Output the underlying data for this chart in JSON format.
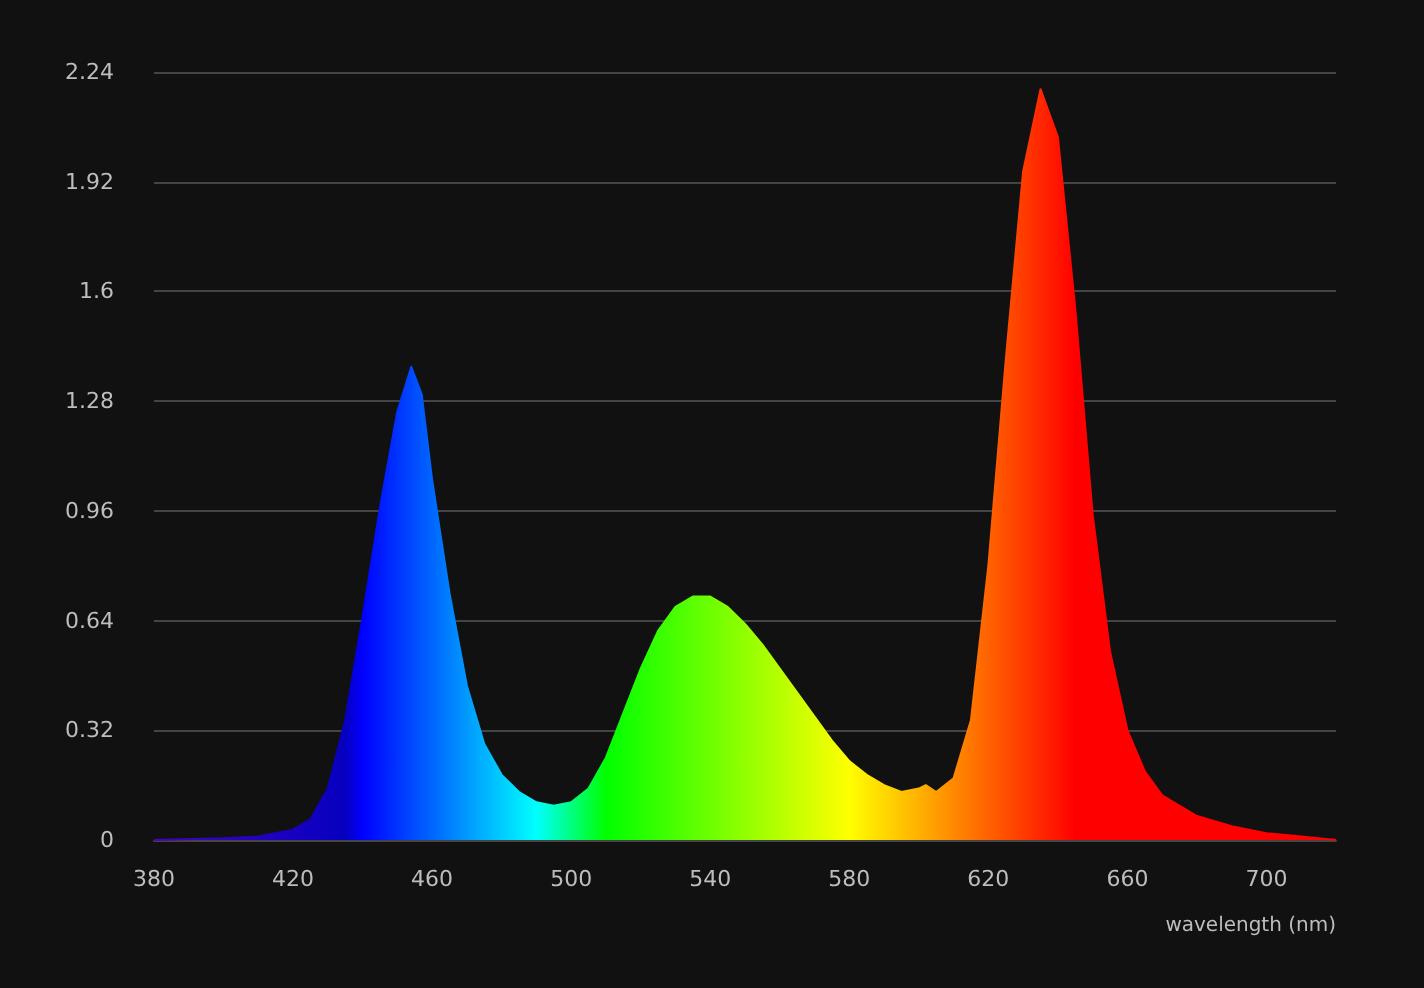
{
  "chart_data": {
    "type": "area",
    "xlabel": "wavelength (nm)",
    "x": [
      380,
      400,
      410,
      420,
      425,
      430,
      435,
      440,
      445,
      450,
      454,
      457,
      460,
      465,
      470,
      475,
      480,
      485,
      490,
      495,
      500,
      505,
      510,
      515,
      520,
      525,
      530,
      535,
      540,
      545,
      550,
      555,
      560,
      565,
      570,
      575,
      580,
      585,
      590,
      595,
      600,
      602,
      605,
      610,
      615,
      620,
      625,
      630,
      635,
      640,
      645,
      650,
      655,
      660,
      665,
      670,
      680,
      690,
      700,
      710,
      720
    ],
    "values": [
      0,
      0.005,
      0.01,
      0.03,
      0.06,
      0.15,
      0.35,
      0.65,
      0.97,
      1.25,
      1.38,
      1.3,
      1.05,
      0.72,
      0.45,
      0.28,
      0.19,
      0.14,
      0.11,
      0.1,
      0.11,
      0.15,
      0.24,
      0.37,
      0.5,
      0.61,
      0.68,
      0.71,
      0.71,
      0.68,
      0.63,
      0.57,
      0.5,
      0.43,
      0.36,
      0.29,
      0.23,
      0.19,
      0.16,
      0.14,
      0.15,
      0.16,
      0.14,
      0.18,
      0.35,
      0.8,
      1.4,
      1.95,
      2.19,
      2.05,
      1.55,
      0.95,
      0.55,
      0.32,
      0.2,
      0.13,
      0.07,
      0.04,
      0.02,
      0.01,
      0
    ],
    "xlim": [
      380,
      720
    ],
    "xticks": [
      380,
      420,
      460,
      500,
      540,
      580,
      620,
      660,
      700
    ],
    "ylim": [
      0,
      2.24
    ],
    "yticks": [
      0,
      0.32,
      0.64,
      0.96,
      1.28,
      1.6,
      1.92,
      2.24
    ],
    "grid": "y",
    "marker": "none"
  }
}
